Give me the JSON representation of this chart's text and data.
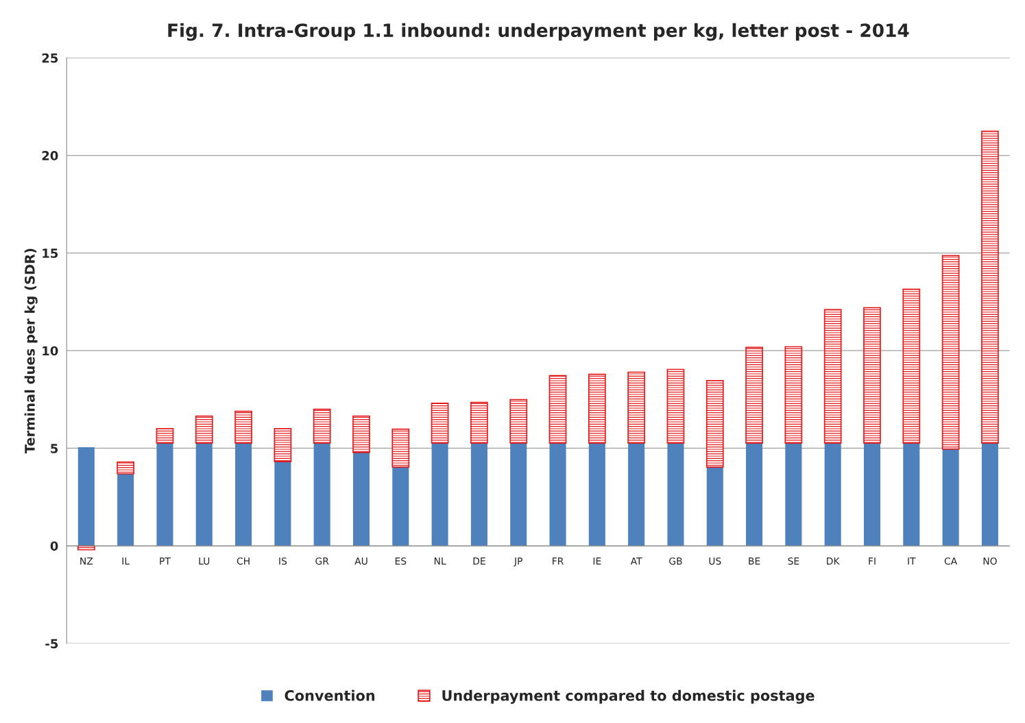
{
  "chart_data": {
    "type": "bar",
    "title": "Fig. 7. Intra-Group 1.1 inbound: underpayment per kg, letter post - 2014",
    "ylabel": "Terminal dues per kg (SDR)",
    "categories": [
      "NZ",
      "IL",
      "PT",
      "LU",
      "CH",
      "IS",
      "GR",
      "AU",
      "ES",
      "NL",
      "DE",
      "JP",
      "FR",
      "IE",
      "AT",
      "GB",
      "US",
      "BE",
      "SE",
      "DK",
      "FI",
      "IT",
      "CA",
      "NO"
    ],
    "stacked": true,
    "series": [
      {
        "name": "Convention",
        "color": "#4f81bd",
        "values": [
          5.05,
          3.69,
          5.27,
          5.27,
          5.27,
          4.32,
          5.27,
          4.78,
          4.04,
          5.27,
          5.27,
          5.27,
          5.27,
          5.27,
          5.27,
          5.27,
          4.04,
          5.27,
          5.27,
          5.27,
          5.27,
          5.27,
          4.96,
          5.27
        ]
      },
      {
        "name": "Underpayment compared to domestic postage",
        "color": "#e31a1c",
        "values": [
          -0.2,
          0.6,
          0.74,
          1.38,
          1.62,
          1.69,
          1.73,
          1.87,
          1.94,
          2.04,
          2.08,
          2.22,
          3.45,
          3.52,
          3.63,
          3.77,
          4.43,
          4.9,
          4.93,
          6.83,
          6.93,
          7.88,
          9.91,
          15.97
        ]
      }
    ],
    "ylim": [
      -5,
      25
    ],
    "yticks": [
      -5,
      0,
      5,
      10,
      15,
      20,
      25
    ],
    "grid": "y",
    "legend": "bottom"
  }
}
